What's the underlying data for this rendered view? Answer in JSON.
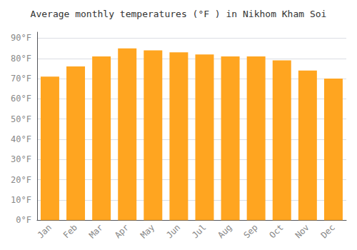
{
  "chart_data": {
    "type": "bar",
    "title": "Average monthly temperatures (°F ) in Nikhom Kham Soi",
    "categories": [
      "Jan",
      "Feb",
      "Mar",
      "Apr",
      "May",
      "Jun",
      "Jul",
      "Aug",
      "Sep",
      "Oct",
      "Nov",
      "Dec"
    ],
    "values": [
      71,
      76,
      81,
      85,
      84,
      83,
      82,
      81,
      81,
      79,
      74,
      70
    ],
    "color": "#FFA520",
    "ylim": [
      0,
      93
    ],
    "yticks": [
      {
        "value": 0,
        "label": "0°F"
      },
      {
        "value": 10,
        "label": "10°F"
      },
      {
        "value": 20,
        "label": "20°F"
      },
      {
        "value": 30,
        "label": "30°F"
      },
      {
        "value": 40,
        "label": "40°F"
      },
      {
        "value": 50,
        "label": "50°F"
      },
      {
        "value": 60,
        "label": "60°F"
      },
      {
        "value": 70,
        "label": "70°F"
      },
      {
        "value": 80,
        "label": "80°F"
      },
      {
        "value": 90,
        "label": "90°F"
      }
    ],
    "grid": true
  }
}
